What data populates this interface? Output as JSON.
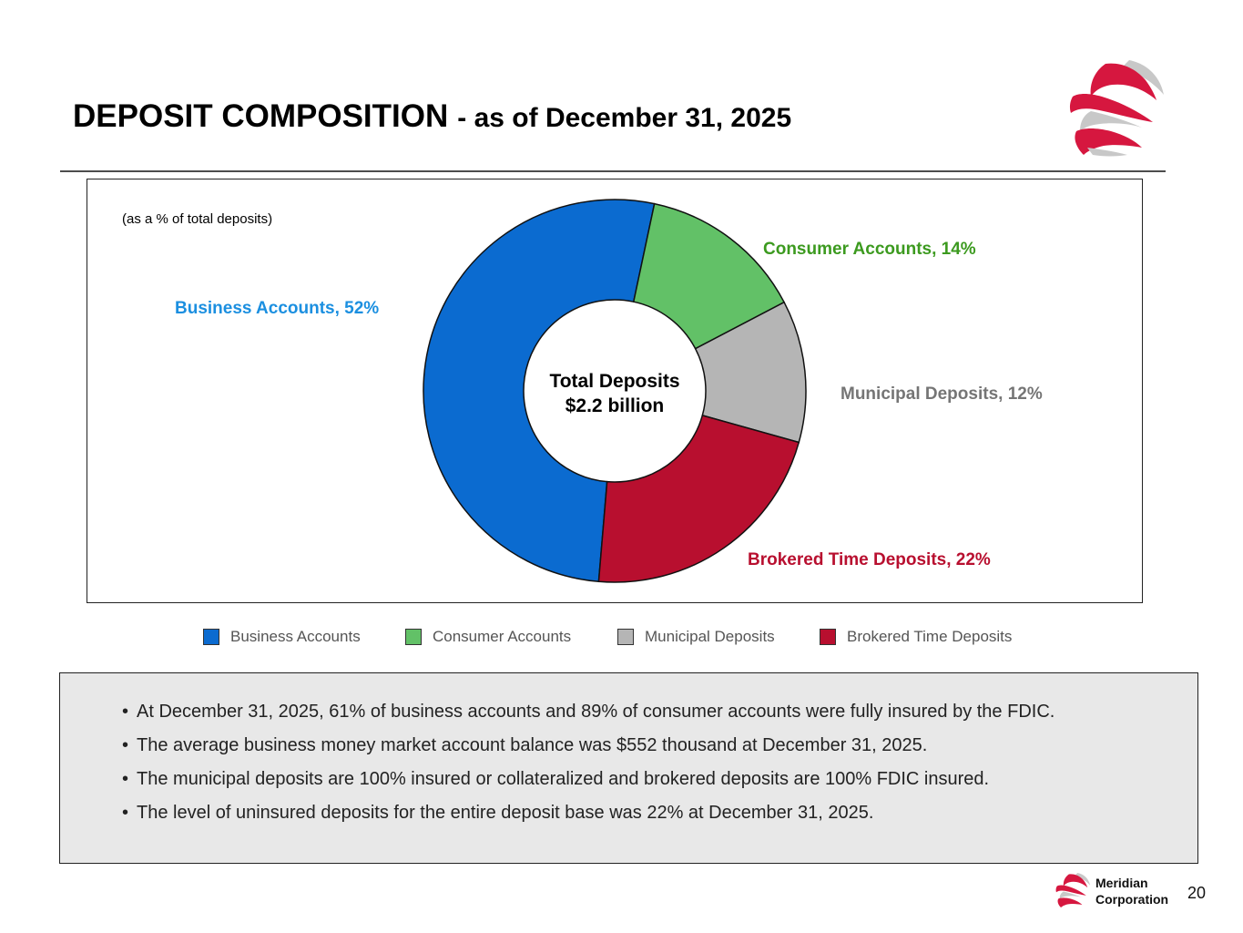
{
  "title": {
    "main": "DEPOSIT COMPOSITION",
    "sub": "- as of December 31, 2025"
  },
  "chart_note": "(as a % of total deposits)",
  "colors": {
    "business": "#0b6bd0",
    "consumer": "#62c167",
    "municipal": "#b5b5b5",
    "brokered": "#b80f2f",
    "business_label": "#1b8fe0",
    "consumer_label": "#3c9a1f",
    "municipal_label": "#757575",
    "brokered_label": "#b80f2f",
    "brand": "#d6173f"
  },
  "chart_data": {
    "type": "pie",
    "variant": "donut",
    "categories": [
      "Business Accounts",
      "Consumer Accounts",
      "Municipal Deposits",
      "Brokered Time Deposits"
    ],
    "values": [
      52,
      14,
      12,
      22
    ],
    "unit": "%",
    "slice_labels": [
      "Business Accounts, 52%",
      "Consumer Accounts, 14%",
      "Municipal Deposits, 12%",
      "Brokered Time Deposits, 22%"
    ],
    "center_text": [
      "Total Deposits",
      "$2.2 billion"
    ],
    "legend": {
      "position": "bottom",
      "entries": [
        "Business Accounts",
        "Consumer Accounts",
        "Municipal Deposits",
        "Brokered Time Deposits"
      ]
    }
  },
  "bullets": [
    "At December 31, 2025, 61% of business accounts and 89% of consumer accounts were fully insured by the FDIC.",
    "The average business money market account balance was $552 thousand at December 31, 2025.",
    "The municipal deposits are 100% insured or collateralized and brokered deposits are 100% FDIC insured.",
    "The level of uninsured deposits for the entire deposit base was 22% at December 31, 2025."
  ],
  "footer": {
    "company_line1": "Meridian",
    "company_line2": "Corporation",
    "page_number": "20"
  }
}
